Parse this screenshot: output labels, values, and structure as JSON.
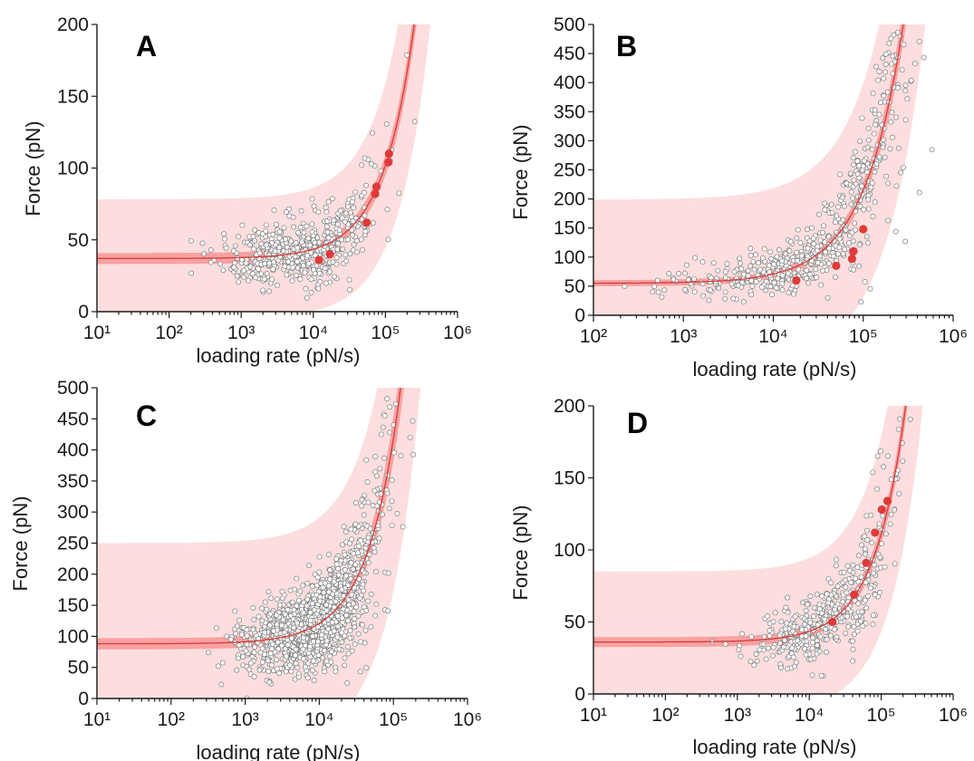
{
  "chart_data": [
    {
      "panel": "A",
      "type": "scatter",
      "xlabel": "loading rate (pN/s)",
      "ylabel": "Force (pN)",
      "xscale": "log",
      "xlim_exp": [
        1,
        6
      ],
      "ylim": [
        0,
        200
      ],
      "yticks": [
        0,
        50,
        100,
        150,
        200
      ],
      "fit": {
        "f0": 37,
        "k": 0.00065,
        "wide_band": 32,
        "narrow_band_rel": 0.05
      },
      "scatter": {
        "center_log": 3.9,
        "spread_log": 0.55,
        "count": 520,
        "seed": 11
      },
      "highlight_points": [
        [
          12000,
          36
        ],
        [
          17000,
          40
        ],
        [
          55000,
          62
        ],
        [
          72000,
          82
        ],
        [
          75000,
          87
        ],
        [
          110000,
          104
        ],
        [
          112000,
          110
        ]
      ],
      "colors": {
        "band_wide": "#fcdede",
        "band_narrow": "#f78c8c",
        "fit_line": "#d94040",
        "highlight": "#e03a3a"
      }
    },
    {
      "panel": "B",
      "type": "scatter",
      "xlabel": "loading rate (pN/s)",
      "ylabel": "Force (pN)",
      "xscale": "log",
      "xlim_exp": [
        2,
        6
      ],
      "ylim": [
        0,
        500
      ],
      "yticks": [
        0,
        50,
        100,
        150,
        200,
        250,
        300,
        350,
        400,
        450,
        500
      ],
      "fit": {
        "f0": 55,
        "k": 0.0016,
        "wide_band": 130,
        "narrow_band_rel": 0.06
      },
      "scatter": {
        "center_log": 4.6,
        "spread_log": 0.75,
        "count": 650,
        "seed": 23
      },
      "highlight_points": [
        [
          18000,
          60
        ],
        [
          50000,
          85
        ],
        [
          75000,
          97
        ],
        [
          78000,
          110
        ],
        [
          100000,
          148
        ]
      ],
      "colors": {
        "band_wide": "#fcdede",
        "band_narrow": "#f78c8c",
        "fit_line": "#d94040",
        "highlight": "#e03a3a"
      }
    },
    {
      "panel": "C",
      "type": "scatter",
      "xlabel": "loading rate (pN/s)",
      "ylabel": "Force (pN)",
      "xscale": "log",
      "xlim_exp": [
        1,
        6
      ],
      "ylim": [
        0,
        500
      ],
      "yticks": [
        0,
        50,
        100,
        150,
        200,
        250,
        300,
        350,
        400,
        450,
        500
      ],
      "fit": {
        "f0": 88,
        "k": 0.0033,
        "wide_band": 140,
        "narrow_band_rel": 0.08
      },
      "scatter": {
        "center_log": 3.95,
        "spread_log": 0.45,
        "count": 1400,
        "seed": 37
      },
      "highlight_points": [],
      "colors": {
        "band_wide": "#fcdede",
        "band_narrow": "#f78c8c",
        "fit_line": "#d94040",
        "highlight": "#e03a3a"
      }
    },
    {
      "panel": "D",
      "type": "scatter",
      "xlabel": "loading rate (pN/s)",
      "ylabel": "Force (pN)",
      "xscale": "log",
      "xlim_exp": [
        1,
        6
      ],
      "ylim": [
        0,
        200
      ],
      "yticks": [
        0,
        50,
        100,
        150,
        200
      ],
      "fit": {
        "f0": 36,
        "k": 0.00075,
        "wide_band": 40,
        "narrow_band_rel": 0.04
      },
      "scatter": {
        "center_log": 4.3,
        "spread_log": 0.55,
        "count": 420,
        "seed": 53
      },
      "highlight_points": [
        [
          21000,
          50
        ],
        [
          42000,
          69
        ],
        [
          62000,
          91
        ],
        [
          82000,
          112
        ],
        [
          102000,
          128
        ],
        [
          122000,
          134
        ]
      ],
      "colors": {
        "band_wide": "#fcdede",
        "band_narrow": "#f78c8c",
        "fit_line": "#d94040",
        "highlight": "#e03a3a"
      }
    }
  ]
}
